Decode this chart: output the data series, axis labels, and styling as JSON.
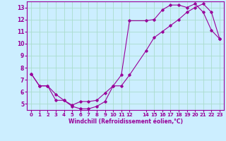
{
  "xlabel": "Windchill (Refroidissement éolien,°C)",
  "bg_color": "#cceeff",
  "grid_color": "#aaddcc",
  "line_color": "#990099",
  "x_upper": [
    0,
    1,
    2,
    3,
    4,
    5,
    6,
    7,
    8,
    9,
    10,
    11,
    12,
    14,
    15,
    16,
    17,
    18,
    19,
    20,
    21,
    22,
    23
  ],
  "y_upper": [
    7.5,
    6.5,
    6.5,
    5.8,
    5.3,
    4.8,
    4.6,
    4.6,
    4.8,
    5.2,
    6.5,
    7.4,
    11.9,
    11.9,
    12.0,
    12.8,
    13.2,
    13.2,
    13.0,
    13.3,
    12.6,
    11.1,
    10.4
  ],
  "x_lower": [
    0,
    1,
    2,
    3,
    4,
    5,
    6,
    7,
    8,
    9,
    10,
    11,
    12,
    14,
    15,
    16,
    17,
    18,
    19,
    20,
    21,
    22,
    23
  ],
  "y_lower": [
    7.5,
    6.5,
    6.5,
    5.3,
    5.3,
    4.9,
    5.2,
    5.2,
    5.3,
    5.9,
    6.5,
    6.5,
    7.4,
    9.4,
    10.5,
    11.0,
    11.5,
    12.0,
    12.6,
    13.0,
    13.3,
    12.6,
    10.4
  ],
  "xlim": [
    -0.5,
    23.5
  ],
  "ylim": [
    4.5,
    13.5
  ],
  "xtick_positions": [
    0,
    1,
    2,
    3,
    4,
    5,
    6,
    7,
    8,
    9,
    10,
    11,
    12,
    14,
    15,
    16,
    17,
    18,
    19,
    20,
    21,
    22,
    23
  ],
  "xtick_labels": [
    "0",
    "1",
    "2",
    "3",
    "4",
    "5",
    "6",
    "7",
    "8",
    "9",
    "10",
    "11",
    "12",
    "14",
    "15",
    "16",
    "17",
    "18",
    "19",
    "20",
    "21",
    "22",
    "23"
  ],
  "yticks": [
    5,
    6,
    7,
    8,
    9,
    10,
    11,
    12,
    13
  ]
}
